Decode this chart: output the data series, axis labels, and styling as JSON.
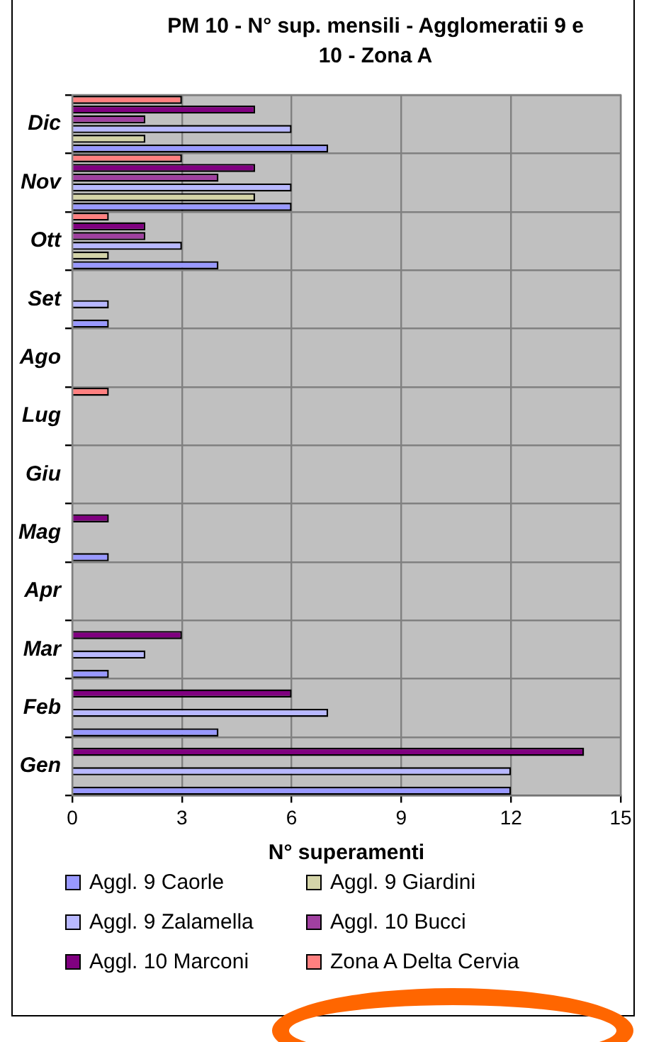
{
  "chart_data": {
    "type": "bar",
    "orientation": "horizontal",
    "title": "PM 10 - N° sup. mensili - Agglomeratii 9 e 10 - Zona A",
    "xlabel": "N° superamenti",
    "categories": [
      "Dic",
      "Nov",
      "Ott",
      "Set",
      "Ago",
      "Lug",
      "Giu",
      "Mag",
      "Apr",
      "Mar",
      "Feb",
      "Gen"
    ],
    "series": [
      {
        "name": "Aggl. 9 Caorle",
        "color": "#9999ff",
        "values": [
          7,
          6,
          4,
          1,
          0,
          0,
          0,
          1,
          0,
          1,
          4,
          12
        ]
      },
      {
        "name": "Aggl. 9 Giardini",
        "color": "#d4d4a8",
        "values": [
          2,
          5,
          1,
          0,
          0,
          0,
          0,
          0,
          0,
          0,
          0,
          0
        ]
      },
      {
        "name": "Aggl. 9 Zalamella",
        "color": "#b8b8ff",
        "values": [
          6,
          6,
          3,
          1,
          0,
          0,
          0,
          0,
          0,
          2,
          7,
          12
        ]
      },
      {
        "name": "Aggl. 10 Bucci",
        "color": "#a040a0",
        "values": [
          2,
          4,
          2,
          0,
          0,
          0,
          0,
          0,
          0,
          0,
          0,
          0
        ]
      },
      {
        "name": "Aggl. 10 Marconi",
        "color": "#800080",
        "values": [
          5,
          5,
          2,
          0,
          0,
          0,
          0,
          1,
          0,
          3,
          6,
          14
        ]
      },
      {
        "name": "Zona A Delta Cervia",
        "color": "#ff8080",
        "values": [
          3,
          3,
          1,
          0,
          0,
          1,
          0,
          0,
          0,
          0,
          0,
          0
        ]
      }
    ],
    "xlim": [
      0,
      15
    ],
    "xticks": [
      0,
      3,
      6,
      9,
      12,
      15
    ],
    "grid": true,
    "legend": "bottom"
  }
}
